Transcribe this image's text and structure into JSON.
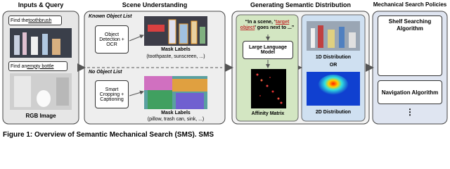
{
  "inputs": {
    "title": "Inputs & Query",
    "query1_prefix": "Find the ",
    "query1_target": "toothbrush",
    "query2_prefix": "Find an ",
    "query2_target": "empty bottle",
    "image_label": "RGB Image"
  },
  "scene": {
    "title": "Scene Understanding",
    "known_label": "Known Object List",
    "known_method": "Object Detection + OCR",
    "known_mask": "Mask Labels",
    "known_examples": "(toothpaste, sunscreen, ...)",
    "unknown_label": "No Object List",
    "unknown_method": "Smart Cropping + Captioning",
    "unknown_mask": "Mask Labels",
    "unknown_examples": "(pillow, trash can, sink, ...)"
  },
  "semantic": {
    "title": "Generating Semantic Distribution",
    "prompt_start": "“In a scene, ‘",
    "prompt_target": "target object",
    "prompt_end": "’ goes next to ...”",
    "model": "Large Language Model",
    "matrix": "Affinity Matrix",
    "dist1": "1D Distribution",
    "or": "OR",
    "dist2": "2D Distribution"
  },
  "policies": {
    "title": "Mechanical Search Policies",
    "shelf": "Shelf Searching Algorithm",
    "nav": "Navigation Algorithm",
    "more": "⋮"
  },
  "caption": "Figure 1: Overview of Semantic Mechanical Search (SMS). SMS"
}
